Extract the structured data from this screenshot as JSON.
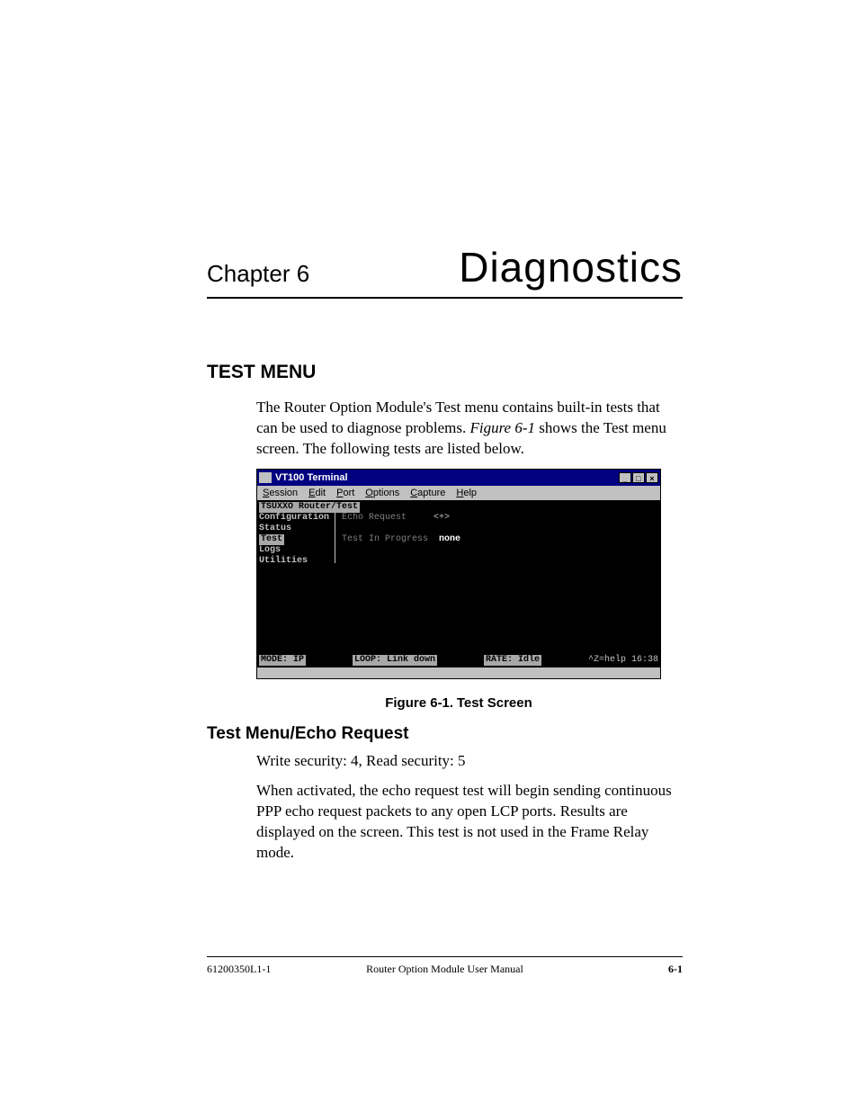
{
  "chapter": {
    "label": "Chapter 6",
    "title": "Diagnostics"
  },
  "section1": {
    "heading": "TEST MENU",
    "para_a": "The Router Option Module's Test menu contains built-in tests that can be used to diagnose problems. ",
    "para_b_italic": "Figure 6-1",
    "para_c": " shows the Test menu screen. The following tests are listed below."
  },
  "terminal": {
    "title": "VT100 Terminal",
    "window_buttons": [
      "_",
      "□",
      "×"
    ],
    "menu": [
      "Session",
      "Edit",
      "Port",
      "Options",
      "Capture",
      "Help"
    ],
    "path": "TSUXXO Router/Test",
    "sidebar": [
      "Configuration",
      "Status",
      "Test",
      "Logs",
      "Utilities"
    ],
    "sidebar_selected_index": 2,
    "main_lines": [
      {
        "label": "Echo Request",
        "value": "<+>",
        "label_gray": true
      },
      {
        "label": "",
        "value": ""
      },
      {
        "label": "Test In Progress",
        "value": "none",
        "label_gray": true,
        "value_bold": true
      }
    ],
    "status": {
      "mode": "MODE: IP",
      "loop": "LOOP: Link down",
      "rate": "RATE: Idle",
      "help": "^Z=help 16:38"
    },
    "colors": {
      "titlebar_bg": "#000080",
      "titlebar_fg": "#ffffff",
      "menubar_bg": "#c0c0c0",
      "inner_bg": "#000000",
      "text_fg": "#c0c0c0",
      "gray_fg": "#808080",
      "highlight_bg": "#a8a8a8"
    }
  },
  "figure": {
    "label": "Figure 6-1.",
    "title": "Test Screen"
  },
  "section2": {
    "heading": "Test Menu/Echo Request",
    "line1": "Write security: 4, Read security: 5",
    "line2": "When activated, the echo request test will begin sending continuous PPP echo request packets to any open LCP ports. Results are displayed on the screen. This test is not used in the Frame Relay mode."
  },
  "footer": {
    "left": "61200350L1-1",
    "center": "Router Option Module User Manual",
    "right": "6-1"
  }
}
